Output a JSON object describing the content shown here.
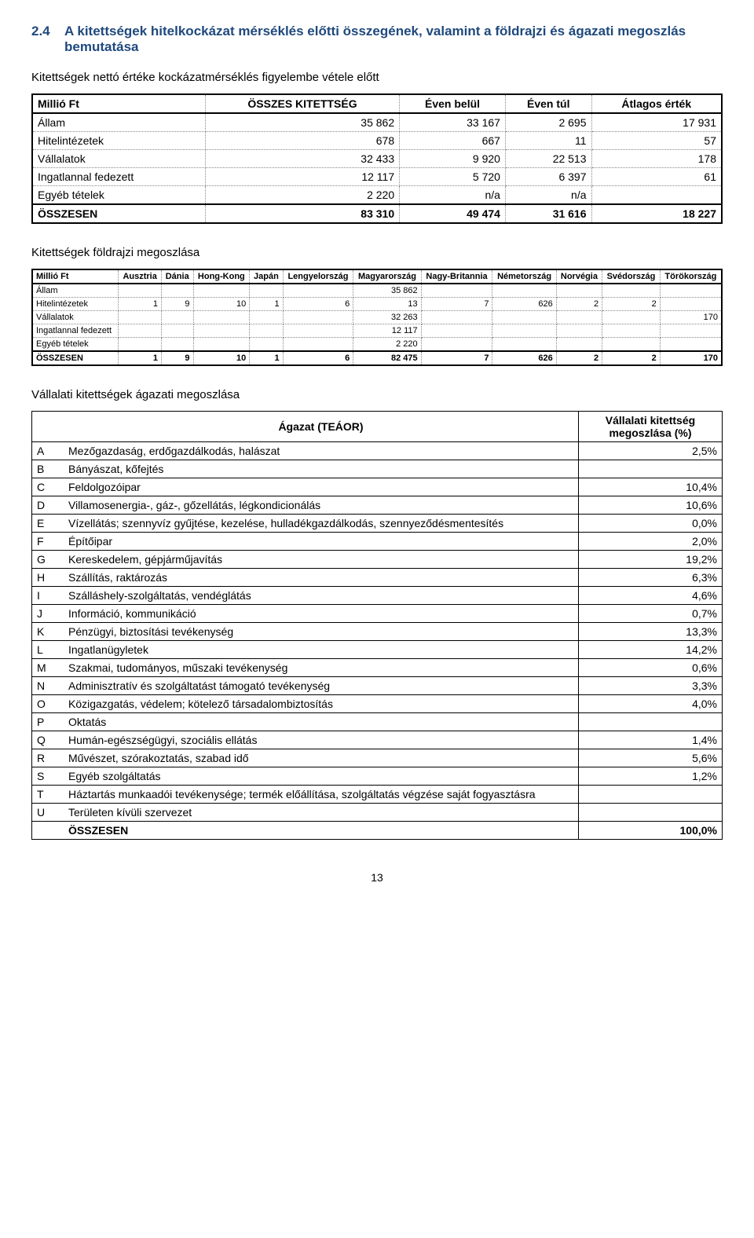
{
  "section": {
    "number": "2.4",
    "title": "A kitettségek hitelkockázat mérséklés előtti összegének, valamint a földrajzi és ágazati megoszlás bemutatása"
  },
  "sub1": "Kitettségek nettó értéke kockázatmérséklés figyelembe vétele előtt",
  "table1": {
    "headers": [
      "Millió Ft",
      "ÖSSZES KITETTSÉG",
      "Éven belül",
      "Éven túl",
      "Átlagos érték"
    ],
    "rows": [
      {
        "label": "Állam",
        "v": [
          "35 862",
          "33 167",
          "2 695",
          "17 931"
        ]
      },
      {
        "label": "Hitelintézetek",
        "v": [
          "678",
          "667",
          "11",
          "57"
        ]
      },
      {
        "label": "Vállalatok",
        "v": [
          "32 433",
          "9 920",
          "22 513",
          "178"
        ]
      },
      {
        "label": "Ingatlannal fedezett",
        "v": [
          "12 117",
          "5 720",
          "6 397",
          "61"
        ]
      },
      {
        "label": "Egyéb tételek",
        "v": [
          "2 220",
          "n/a",
          "n/a",
          ""
        ]
      }
    ],
    "total": {
      "label": "ÖSSZESEN",
      "v": [
        "83 310",
        "49 474",
        "31 616",
        "18 227"
      ]
    }
  },
  "sub2": "Kitettségek földrajzi megoszlása",
  "table2": {
    "headers": [
      "Millió Ft",
      "Ausztria",
      "Dánia",
      "Hong-Kong",
      "Japán",
      "Lengyelország",
      "Magyarország",
      "Nagy-Britannia",
      "Németország",
      "Norvégia",
      "Svédország",
      "Törökország"
    ],
    "rows": [
      {
        "label": "Állam",
        "v": [
          "",
          "",
          "",
          "",
          "",
          "35 862",
          "",
          "",
          "",
          "",
          ""
        ]
      },
      {
        "label": "Hitelintézetek",
        "v": [
          "1",
          "9",
          "10",
          "1",
          "6",
          "13",
          "7",
          "626",
          "2",
          "2",
          ""
        ]
      },
      {
        "label": "Vállalatok",
        "v": [
          "",
          "",
          "",
          "",
          "",
          "32 263",
          "",
          "",
          "",
          "",
          "170"
        ]
      },
      {
        "label": "Ingatlannal fedezett",
        "v": [
          "",
          "",
          "",
          "",
          "",
          "12 117",
          "",
          "",
          "",
          "",
          ""
        ]
      },
      {
        "label": "Egyéb tételek",
        "v": [
          "",
          "",
          "",
          "",
          "",
          "2 220",
          "",
          "",
          "",
          "",
          ""
        ]
      }
    ],
    "total": {
      "label": "ÖSSZESEN",
      "v": [
        "1",
        "9",
        "10",
        "1",
        "6",
        "82 475",
        "7",
        "626",
        "2",
        "2",
        "170"
      ]
    }
  },
  "sub3": "Vállalati kitettségek ágazati megoszlása",
  "table3": {
    "head_left": "Ágazat (TEÁOR)",
    "head_right": "Vállalati kitettség megoszlása (%)",
    "rows": [
      {
        "c": "A",
        "l": "Mezőgazdaság, erdőgazdálkodás, halászat",
        "p": "2,5%"
      },
      {
        "c": "B",
        "l": "Bányászat, kőfejtés",
        "p": ""
      },
      {
        "c": "C",
        "l": "Feldolgozóipar",
        "p": "10,4%"
      },
      {
        "c": "D",
        "l": "Villamosenergia-, gáz-, gőzellátás, légkondicionálás",
        "p": "10,6%"
      },
      {
        "c": "E",
        "l": "Vízellátás; szennyvíz gyűjtése, kezelése, hulladékgazdálkodás, szennyeződésmentesítés",
        "p": "0,0%"
      },
      {
        "c": "F",
        "l": "Építőipar",
        "p": "2,0%"
      },
      {
        "c": "G",
        "l": "Kereskedelem, gépjárműjavítás",
        "p": "19,2%"
      },
      {
        "c": "H",
        "l": "Szállítás, raktározás",
        "p": "6,3%"
      },
      {
        "c": "I",
        "l": "Szálláshely-szolgáltatás, vendéglátás",
        "p": "4,6%"
      },
      {
        "c": "J",
        "l": "Információ, kommunikáció",
        "p": "0,7%"
      },
      {
        "c": "K",
        "l": "Pénzügyi, biztosítási tevékenység",
        "p": "13,3%"
      },
      {
        "c": "L",
        "l": "Ingatlanügyletek",
        "p": "14,2%"
      },
      {
        "c": "M",
        "l": "Szakmai, tudományos, műszaki tevékenység",
        "p": "0,6%"
      },
      {
        "c": "N",
        "l": "Adminisztratív és szolgáltatást támogató tevékenység",
        "p": "3,3%"
      },
      {
        "c": "O",
        "l": "Közigazgatás, védelem; kötelező társadalombiztosítás",
        "p": "4,0%"
      },
      {
        "c": "P",
        "l": "Oktatás",
        "p": ""
      },
      {
        "c": "Q",
        "l": "Humán-egészségügyi, szociális ellátás",
        "p": "1,4%"
      },
      {
        "c": "R",
        "l": "Művészet, szórakoztatás, szabad idő",
        "p": "5,6%"
      },
      {
        "c": "S",
        "l": "Egyéb szolgáltatás",
        "p": "1,2%"
      },
      {
        "c": "T",
        "l": "Háztartás munkaadói tevékenysége; termék előállítása, szolgáltatás végzése saját fogyasztásra",
        "p": ""
      },
      {
        "c": "U",
        "l": "Területen kívüli szervezet",
        "p": ""
      }
    ],
    "total": {
      "c": "",
      "l": "ÖSSZESEN",
      "p": "100,0%"
    }
  },
  "page_number": "13"
}
